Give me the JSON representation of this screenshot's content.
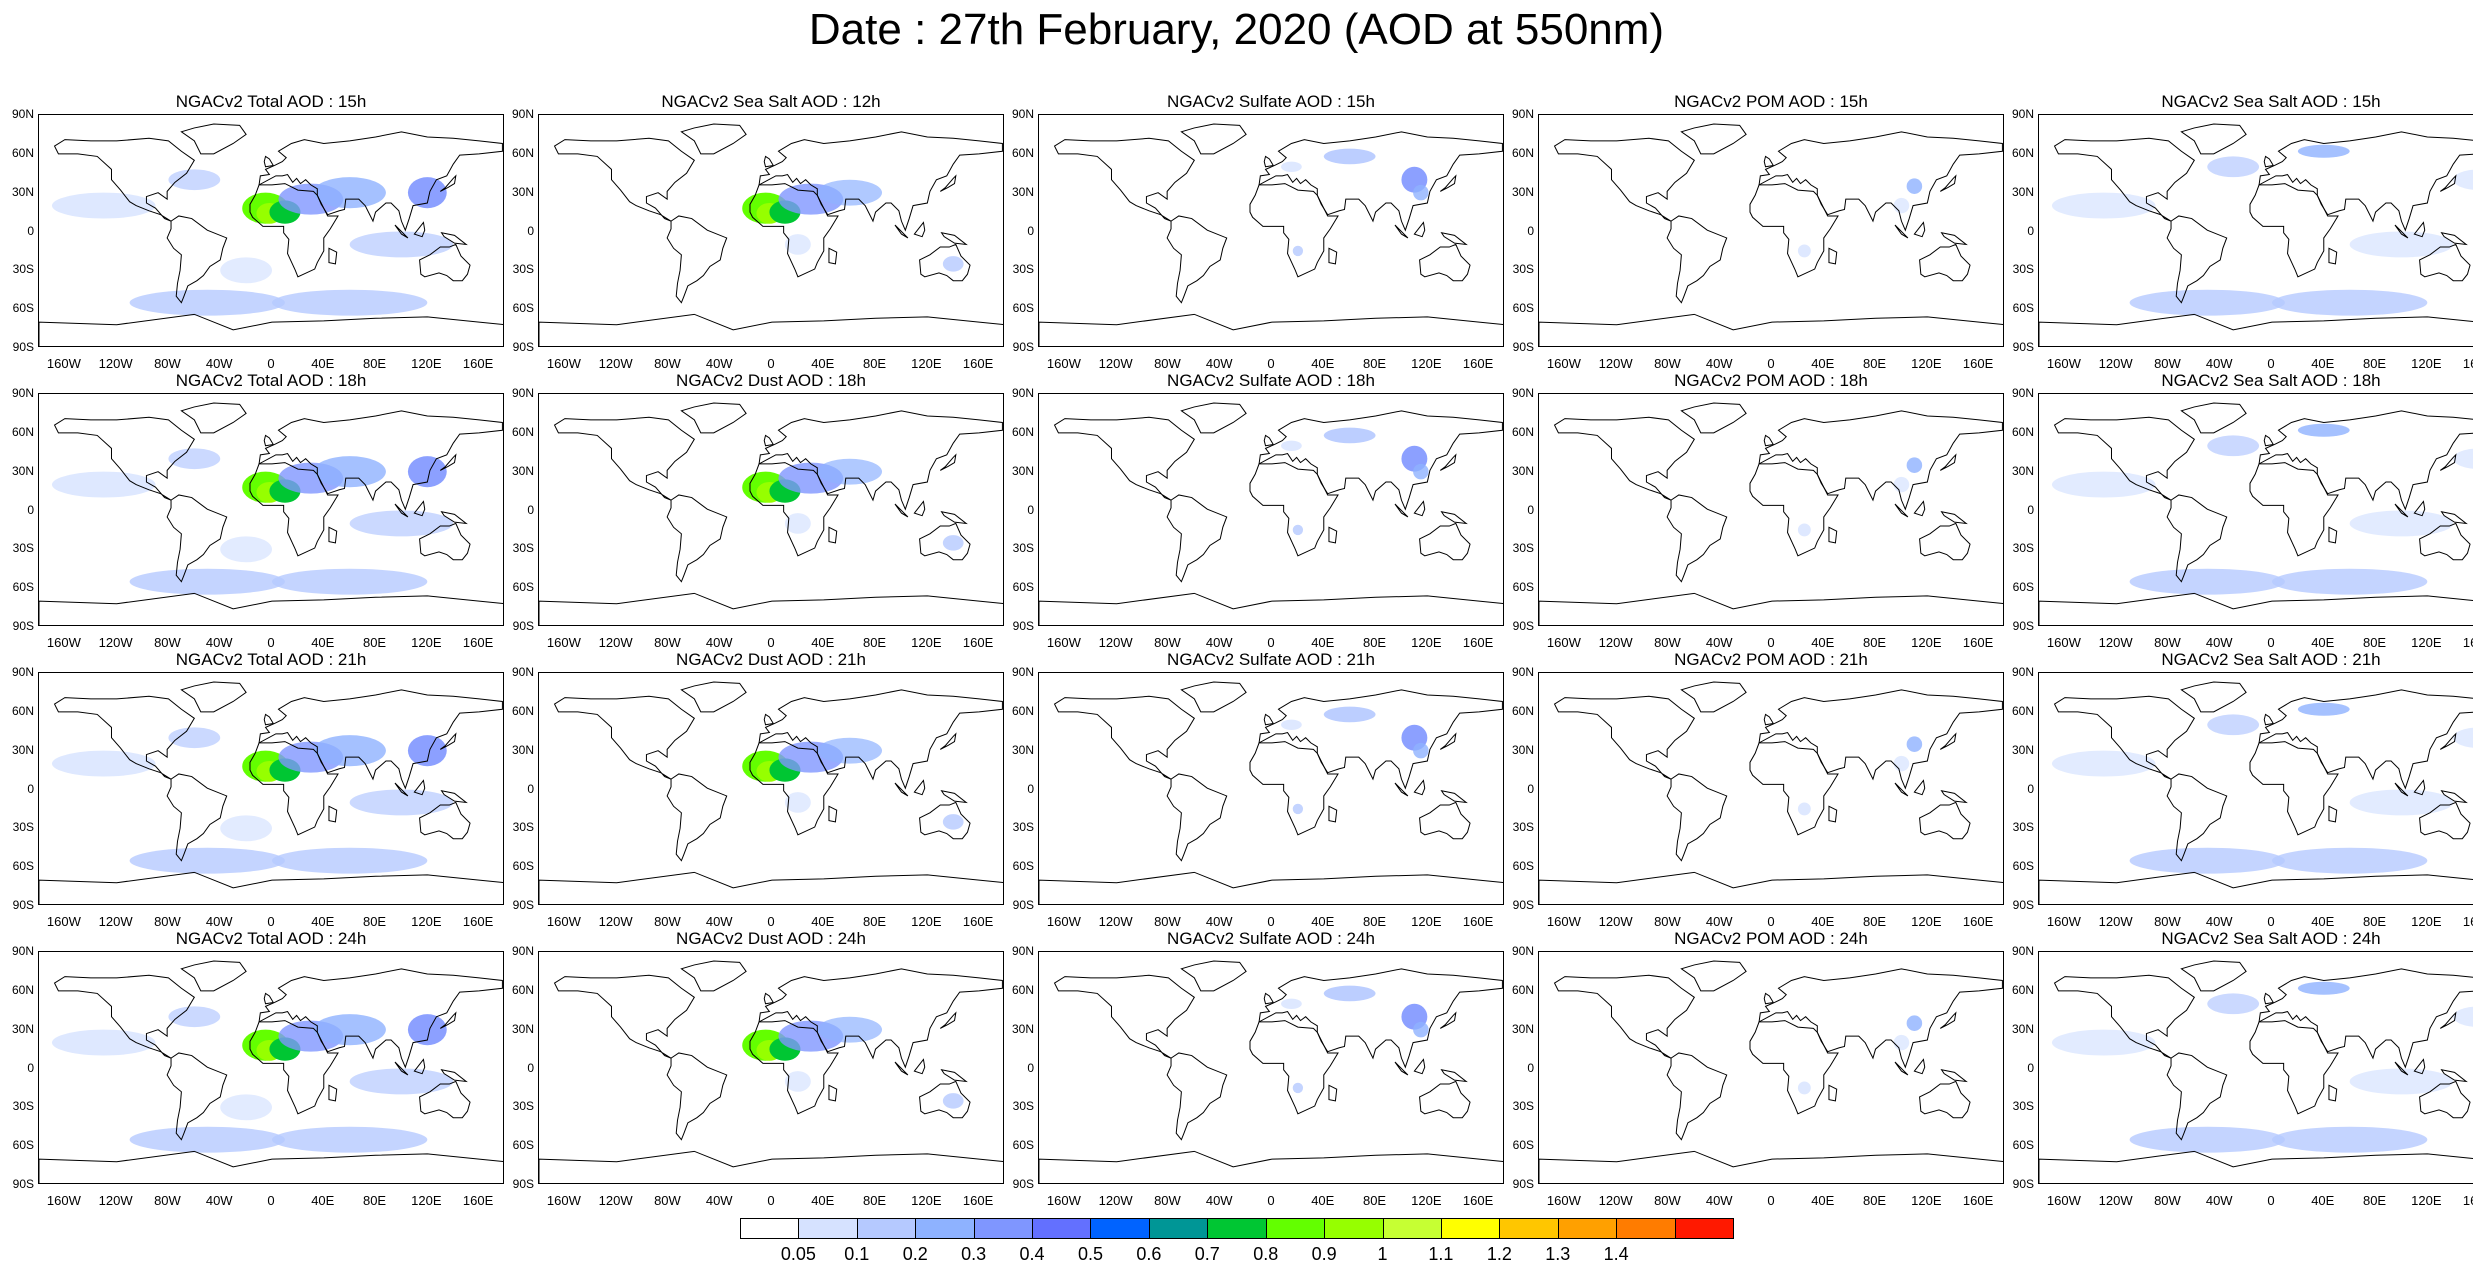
{
  "title": "Date : 27th February, 2020 (AOD at 550nm)",
  "lat_labels": [
    "90N",
    "60N",
    "30N",
    "0",
    "30S",
    "60S",
    "90S"
  ],
  "lon_labels": [
    "160W",
    "120W",
    "80W",
    "40W",
    "0",
    "40E",
    "80E",
    "120E",
    "160E"
  ],
  "panels": [
    [
      "NGACv2 Total AOD : 15h",
      "NGACv2 Sea Salt  AOD : 12h",
      "NGACv2 Sulfate AOD : 15h",
      "NGACv2 POM AOD : 15h",
      "NGACv2 Sea Salt AOD : 15h"
    ],
    [
      "NGACv2 Total AOD : 18h",
      "NGACv2 Dust AOD : 18h",
      "NGACv2 Sulfate AOD : 18h",
      "NGACv2 POM AOD : 18h",
      "NGACv2 Sea Salt AOD : 18h"
    ],
    [
      "NGACv2 Total AOD : 21h",
      "NGACv2 Dust AOD : 21h",
      "NGACv2 Sulfate AOD : 21h",
      "NGACv2 POM AOD : 21h",
      "NGACv2 Sea Salt AOD : 21h"
    ],
    [
      "NGACv2 Total AOD : 24h",
      "NGACv2 Dust AOD : 24h",
      "NGACv2 Sulfate AOD : 24h",
      "NGACv2 POM AOD : 24h",
      "NGACv2 Sea Salt AOD : 24h"
    ]
  ],
  "colorbar": {
    "labels": [
      "0.05",
      "0.1",
      "0.2",
      "0.3",
      "0.4",
      "0.5",
      "0.6",
      "0.7",
      "0.8",
      "0.9",
      "1",
      "1.1",
      "1.2",
      "1.3",
      "1.4"
    ],
    "colors": [
      "#ffffff",
      "#d6e2ff",
      "#b5c9ff",
      "#8eb2ff",
      "#7f96ff",
      "#6370ff",
      "#0063ff",
      "#009696",
      "#00c633",
      "#63ff00",
      "#96ff00",
      "#c6ff33",
      "#ffff00",
      "#ffc600",
      "#ffa000",
      "#ff7c00",
      "#ff1900"
    ]
  }
}
